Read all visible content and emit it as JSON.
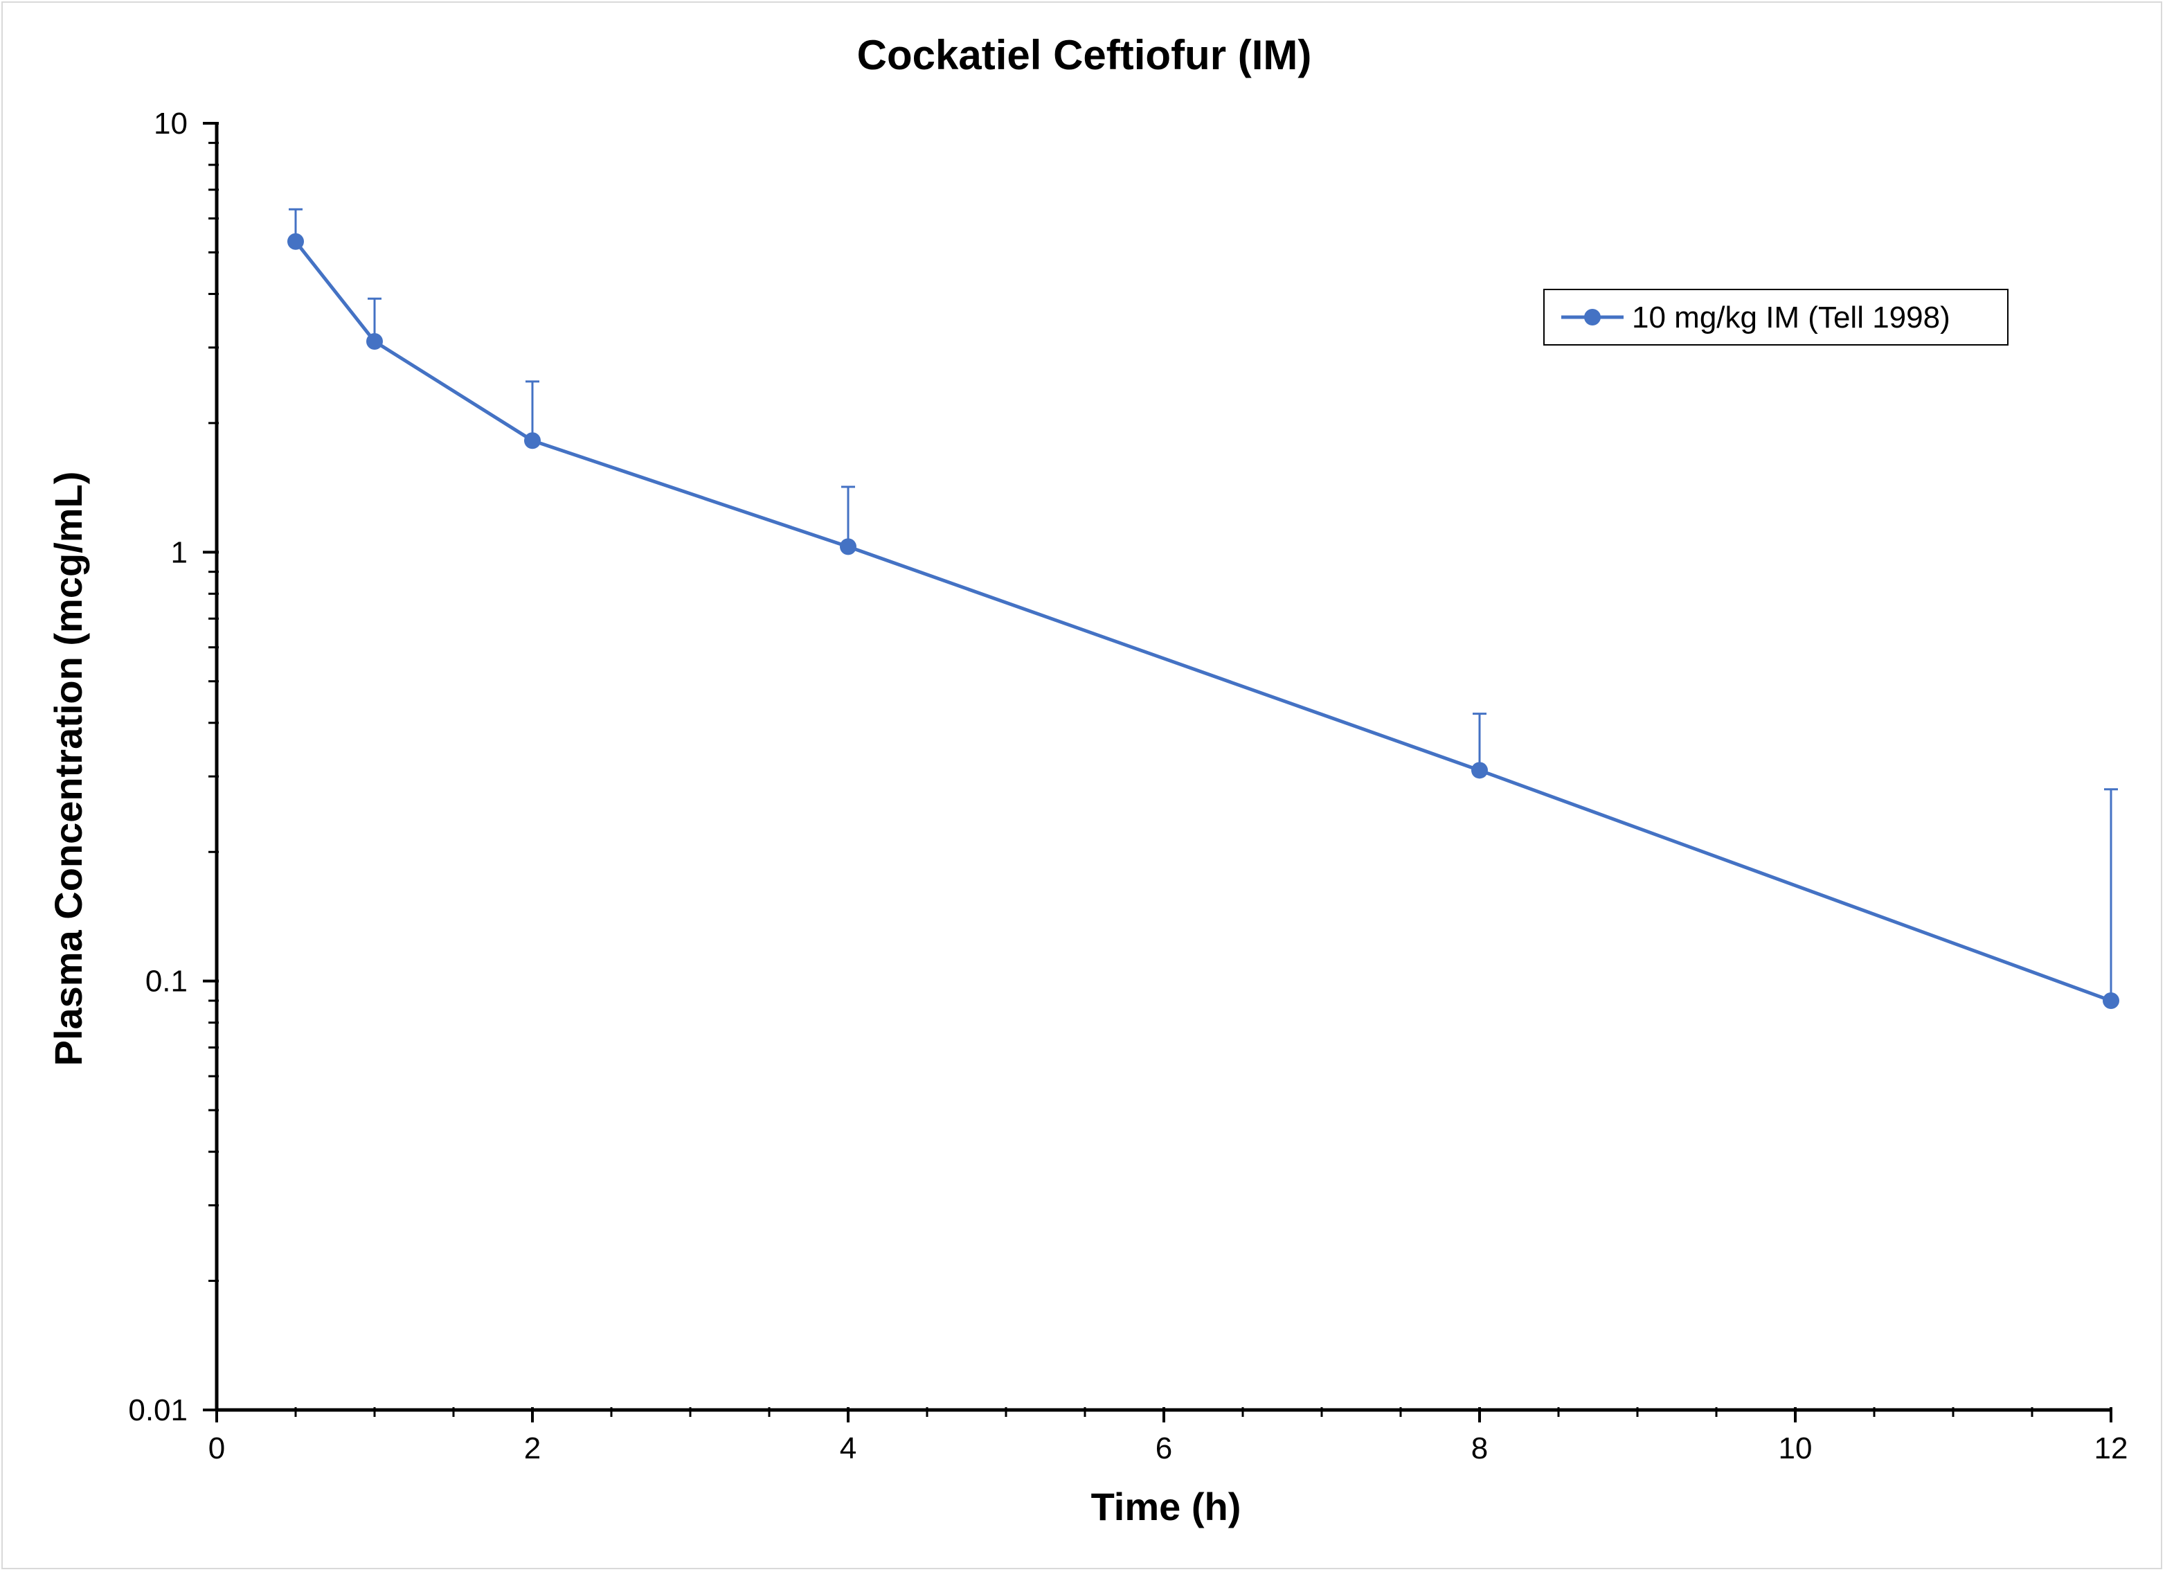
{
  "chart_data": {
    "type": "line",
    "title": "Cockatiel Ceftiofur (IM)",
    "xlabel": "Time (h)",
    "ylabel": "Plasma Concentration (mcg/mL)",
    "xlim": [
      0,
      12
    ],
    "ylim": [
      0.01,
      10
    ],
    "y_scale": "log",
    "x_ticks": [
      "0",
      "2",
      "4",
      "6",
      "8",
      "10",
      "12"
    ],
    "y_ticks": [
      "0.01",
      "0.1",
      "1",
      "10"
    ],
    "grid": false,
    "legend_position": "top-right",
    "series": [
      {
        "name": "10 mg/kg IM (Tell 1998)",
        "color": "#4472c4",
        "x": [
          0.5,
          1,
          2,
          4,
          8,
          12
        ],
        "y": [
          5.3,
          3.1,
          1.82,
          1.03,
          0.31,
          0.09
        ],
        "error_upper": [
          6.3,
          3.9,
          2.5,
          1.42,
          0.42,
          0.28
        ]
      }
    ]
  }
}
